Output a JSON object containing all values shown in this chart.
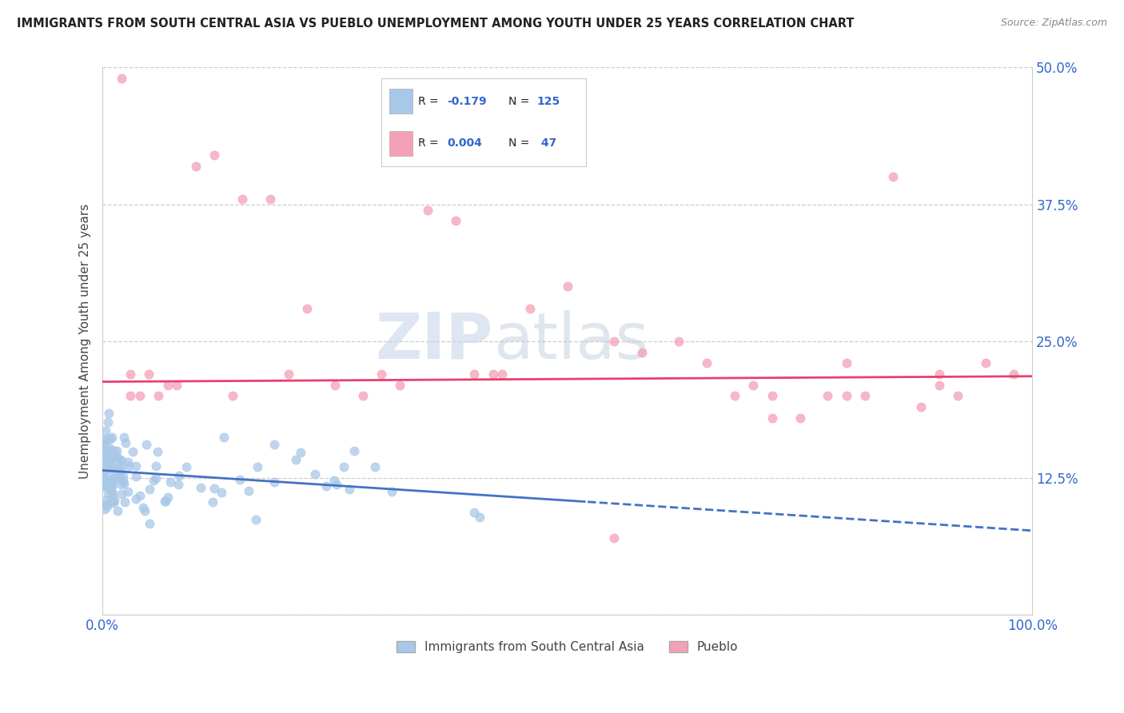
{
  "title": "IMMIGRANTS FROM SOUTH CENTRAL ASIA VS PUEBLO UNEMPLOYMENT AMONG YOUTH UNDER 25 YEARS CORRELATION CHART",
  "source": "Source: ZipAtlas.com",
  "ylabel": "Unemployment Among Youth under 25 years",
  "xlabel": "",
  "xlim": [
    0,
    100
  ],
  "ylim": [
    0,
    50
  ],
  "yticks": [
    0,
    12.5,
    25.0,
    37.5,
    50.0
  ],
  "xticks": [
    0,
    100
  ],
  "xtick_labels": [
    "0.0%",
    "100.0%"
  ],
  "ytick_labels": [
    "",
    "12.5%",
    "25.0%",
    "37.5%",
    "50.0%"
  ],
  "blue_color": "#A8C8E8",
  "pink_color": "#F4A0B8",
  "blue_line_color": "#4472C4",
  "pink_line_color": "#E84070",
  "blue_R": -0.179,
  "blue_N": 125,
  "pink_R": 0.004,
  "pink_N": 47,
  "watermark_zip": "ZIP",
  "watermark_atlas": "atlas",
  "background_color": "#FFFFFF",
  "grid_color": "#CCCCCC",
  "legend_label_blue": "Immigrants from South Central Asia",
  "legend_label_pink": "Pueblo",
  "blue_trend_intercept": 13.2,
  "blue_trend_slope": -0.055,
  "blue_solid_end": 52,
  "pink_trend_intercept": 21.3,
  "pink_trend_slope": 0.005
}
